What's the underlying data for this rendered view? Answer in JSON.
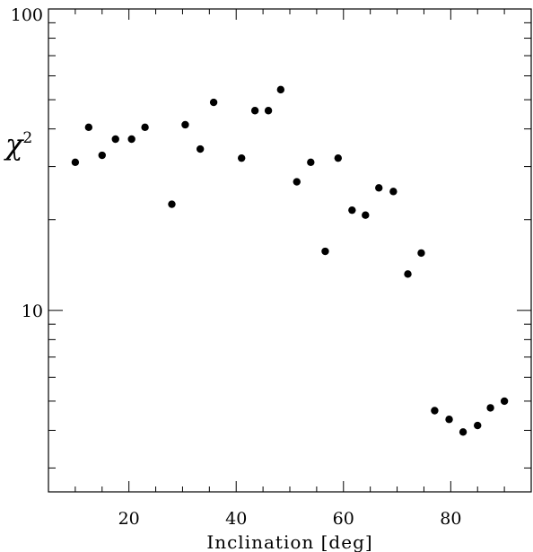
{
  "chart_data": {
    "type": "scatter",
    "title": "",
    "xlabel": "Inclination [deg]",
    "ylabel": "χ",
    "ylabel_superscript": "2",
    "xlim": [
      5,
      95
    ],
    "ylim": [
      2.5,
      100
    ],
    "yscale": "log",
    "grid": false,
    "x_ticks": [
      "20",
      "40",
      "60",
      "80"
    ],
    "y_ticks": [
      "10",
      "100"
    ],
    "marker_color": "#000000",
    "series": [
      {
        "x": [
          10,
          12.5,
          15,
          17.5,
          20.5,
          23,
          28,
          30.5,
          33.3,
          35.8,
          41,
          43.5,
          46,
          48.3,
          51.3,
          53.9,
          56.6,
          59,
          61.6,
          64.1,
          66.6,
          69.3,
          72,
          74.5,
          77,
          79.7,
          82.3,
          85,
          87.4,
          90
        ],
        "y": [
          31,
          40.5,
          32.7,
          37,
          37,
          40.5,
          22.5,
          41.3,
          34.3,
          49,
          32,
          46,
          46,
          54,
          26.7,
          31,
          15.7,
          32,
          21.5,
          20.7,
          25.5,
          24.8,
          13.2,
          15.5,
          4.65,
          4.35,
          3.95,
          4.15,
          4.75,
          5
        ]
      }
    ]
  }
}
